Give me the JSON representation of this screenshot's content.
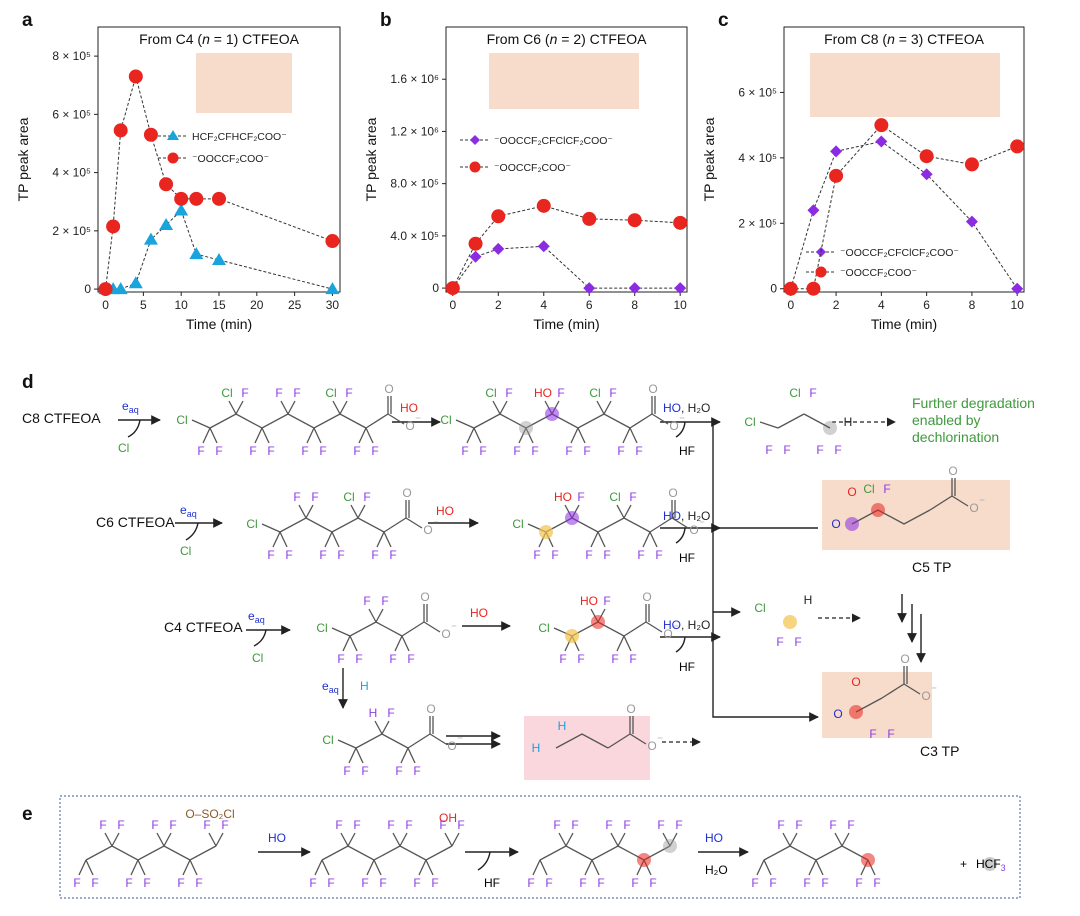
{
  "panels": {
    "a": "a",
    "b": "b",
    "c": "c",
    "d": "d",
    "e": "e"
  },
  "ylabel": "TP peak area",
  "xlabel": "Time (min)",
  "chart_data": [
    {
      "type": "scatter",
      "title_parts": [
        "From C4 (",
        "n",
        " = 1) CTFEOA"
      ],
      "xlabel": "Time (min)",
      "ylabel": "TP peak area",
      "xlim": [
        -1,
        31
      ],
      "ylim": [
        -10000,
        900000
      ],
      "xticks": [
        0,
        5,
        10,
        15,
        20,
        25,
        30
      ],
      "yticks": [
        0,
        200000,
        400000,
        600000,
        800000
      ],
      "ytick_labels": [
        "0",
        "2 × 10⁵",
        "4 × 10⁵",
        "6 × 10⁵",
        "8 × 10⁵"
      ],
      "series": [
        {
          "name": "HCF₂CFHCF₂COO⁻",
          "marker": "triangle",
          "color": "#18a4dc",
          "x": [
            0,
            1,
            2,
            4,
            6,
            8,
            10,
            12,
            15,
            30
          ],
          "y": [
            0,
            0,
            0,
            20000,
            170000,
            220000,
            270000,
            120000,
            100000,
            0
          ]
        },
        {
          "name": "⁻OOCCF₂COO⁻",
          "marker": "circle",
          "color": "#e8251f",
          "x": [
            0,
            1,
            2,
            4,
            6,
            8,
            10,
            12,
            15,
            30
          ],
          "y": [
            0,
            215000,
            545000,
            730000,
            530000,
            360000,
            310000,
            310000,
            310000,
            165000
          ]
        }
      ]
    },
    {
      "type": "scatter",
      "title_parts": [
        "From C6 (",
        "n",
        " = 2) CTFEOA"
      ],
      "xlabel": "Time (min)",
      "ylabel": "TP peak area",
      "xlim": [
        -0.3,
        10.3
      ],
      "ylim": [
        -30000,
        2000000
      ],
      "xticks": [
        0,
        2,
        4,
        6,
        8,
        10
      ],
      "yticks": [
        0,
        400000,
        800000,
        1200000,
        1600000
      ],
      "ytick_labels": [
        "0",
        "4.0 × 10⁵",
        "8.0 × 10⁵",
        "1.2 × 10⁶",
        "1.6 × 10⁶"
      ],
      "series": [
        {
          "name": "⁻OOCCF₂CFClCF₂COO⁻",
          "marker": "diamond",
          "color": "#8b2be2",
          "x": [
            0,
            1,
            2,
            4,
            6,
            8,
            10
          ],
          "y": [
            0,
            240000,
            300000,
            320000,
            0,
            0,
            0
          ]
        },
        {
          "name": "⁻OOCCF₂COO⁻",
          "marker": "circle",
          "color": "#e8251f",
          "x": [
            0,
            1,
            2,
            4,
            6,
            8,
            10
          ],
          "y": [
            0,
            340000,
            550000,
            630000,
            530000,
            520000,
            500000
          ]
        }
      ]
    },
    {
      "type": "scatter",
      "title_parts": [
        "From C8 (",
        "n",
        " = 3) CTFEOA"
      ],
      "xlabel": "Time (min)",
      "ylabel": "TP peak area",
      "xlim": [
        -0.3,
        10.3
      ],
      "ylim": [
        -10000,
        800000
      ],
      "xticks": [
        0,
        2,
        4,
        6,
        8,
        10
      ],
      "yticks": [
        0,
        200000,
        400000,
        600000
      ],
      "ytick_labels": [
        "0",
        "2 × 10⁵",
        "4 × 10⁵",
        "6 × 10⁵"
      ],
      "series": [
        {
          "name": "⁻OOCCF₂CFClCF₂COO⁻",
          "marker": "diamond",
          "color": "#8b2be2",
          "x": [
            0,
            1,
            2,
            4,
            6,
            8,
            10
          ],
          "y": [
            0,
            240000,
            420000,
            450000,
            350000,
            205000,
            0
          ]
        },
        {
          "name": "⁻OOCCF₂COO⁻",
          "marker": "circle",
          "color": "#e8251f",
          "x": [
            0,
            1,
            2,
            4,
            6,
            8,
            10
          ],
          "y": [
            0,
            0,
            345000,
            500000,
            405000,
            380000,
            435000
          ]
        }
      ]
    }
  ],
  "scheme": {
    "c8": "C8 CTFEOA",
    "c6": "C6 CTFEOA",
    "c4": "C4 CTFEOA",
    "eaq": "e",
    "eaq_sub": "aq",
    "cl_minus": "Cl",
    "ho_radical": "HO",
    "ho_minus_h2o": "HO",
    "h2o": ", H₂O",
    "hf": "HF",
    "h_plus": "H",
    "further": [
      "Further degradation",
      "enabled by",
      "dechlorination"
    ],
    "c5tp": "C5 TP",
    "c3tp": "C3 TP",
    "e_ho": "HO",
    "e_h2o": "H₂O",
    "e_hf": "HF",
    "e_plus": "+",
    "e_hcf3": "HCF",
    "e_hcf3_sub": "3",
    "so2cl": "O–SO₂Cl",
    "oh": "OH"
  },
  "colors": {
    "red": "#e8251f",
    "blue": "#18a4dc",
    "purple": "#8b2be2",
    "green": "#3e9a3c",
    "fluorine": "#8e3fe0",
    "navy": "#1f2fd0",
    "peach": "#f7dccb",
    "pink": "#f9d7dc"
  }
}
